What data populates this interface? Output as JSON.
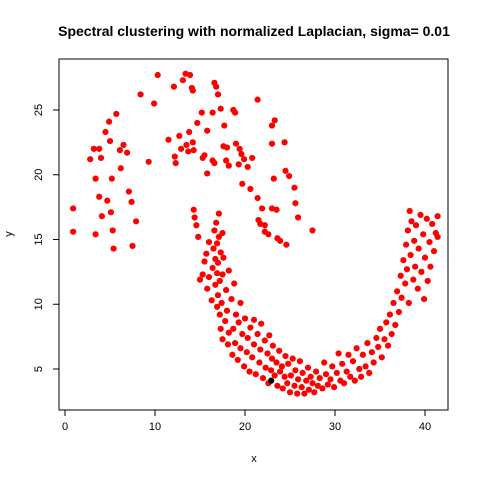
{
  "chart_data": {
    "type": "scatter",
    "title": "Spectral clustering with normalized Laplacian, sigma= 0.01",
    "xlabel": "x",
    "ylabel": "y",
    "xlim": [
      0,
      42
    ],
    "ylim": [
      3,
      28
    ],
    "xticks": [
      0,
      10,
      20,
      30,
      40
    ],
    "yticks": [
      5,
      10,
      15,
      20,
      25
    ],
    "grid": false,
    "legend": "none",
    "series": [
      {
        "color": "#ff0000",
        "points": [
          [
            0.9,
            17.4
          ],
          [
            0.9,
            15.6
          ],
          [
            2.8,
            21.2
          ],
          [
            3.2,
            22
          ],
          [
            3.4,
            19.7
          ],
          [
            3.4,
            15.4
          ],
          [
            3.8,
            22
          ],
          [
            4.0,
            21.3
          ],
          [
            3.8,
            18.3
          ],
          [
            4.1,
            16.8
          ],
          [
            4.5,
            23.3
          ],
          [
            4.7,
            18
          ],
          [
            4.9,
            24.1
          ],
          [
            5.0,
            22.6
          ],
          [
            5.2,
            19.7
          ],
          [
            5.1,
            17.1
          ],
          [
            5.3,
            15.7
          ],
          [
            5.4,
            14.3
          ],
          [
            5.7,
            24.7
          ],
          [
            6.1,
            21.9
          ],
          [
            6.2,
            20.5
          ],
          [
            6.5,
            22.3
          ],
          [
            6.9,
            21.7
          ],
          [
            7.1,
            18.7
          ],
          [
            7.4,
            17.9
          ],
          [
            7.5,
            14.5
          ],
          [
            7.9,
            16.4
          ],
          [
            8.4,
            26.2
          ],
          [
            9.3,
            21
          ],
          [
            9.9,
            25.5
          ],
          [
            10.3,
            27.7
          ],
          [
            11.5,
            22.7
          ],
          [
            12.1,
            26.8
          ],
          [
            12.2,
            21.4
          ],
          [
            12.3,
            20.9
          ],
          [
            12.7,
            23
          ],
          [
            12.9,
            22
          ],
          [
            13.1,
            27.3
          ],
          [
            13.4,
            27.8
          ],
          [
            13.5,
            22.3
          ],
          [
            13.7,
            21.8
          ],
          [
            13.8,
            23.3
          ],
          [
            13.9,
            27.7
          ],
          [
            14.1,
            26.7
          ],
          [
            14.2,
            26.5
          ],
          [
            14.2,
            22.5
          ],
          [
            14.3,
            21.9
          ],
          [
            14.3,
            17.3
          ],
          [
            14.4,
            16.7
          ],
          [
            14.6,
            16.1
          ],
          [
            14.8,
            15.2
          ],
          [
            14.7,
            24
          ],
          [
            15.2,
            24.8
          ],
          [
            15.3,
            21.3
          ],
          [
            15.5,
            21.5
          ],
          [
            15.8,
            23.4
          ],
          [
            15.8,
            20.1
          ],
          [
            16.4,
            24.8
          ],
          [
            16.4,
            21.1
          ],
          [
            16.6,
            27.1
          ],
          [
            16.8,
            26.8
          ],
          [
            16.6,
            20.9
          ],
          [
            17.0,
            26.2
          ],
          [
            17.3,
            25.1
          ],
          [
            17.6,
            22.2
          ],
          [
            17.7,
            23.8
          ],
          [
            17.9,
            21.1
          ],
          [
            18.0,
            22.1
          ],
          [
            18.2,
            20.7
          ],
          [
            18.7,
            25
          ],
          [
            18.9,
            24.8
          ],
          [
            19.0,
            22.4
          ],
          [
            19.3,
            20.8
          ],
          [
            19.4,
            22
          ],
          [
            19.6,
            21.6
          ],
          [
            19.7,
            19.3
          ],
          [
            19.9,
            21.2
          ],
          [
            20.3,
            20.6
          ],
          [
            20.6,
            18.9
          ],
          [
            20.8,
            21.3
          ],
          [
            21.4,
            25.8
          ],
          [
            21.4,
            18.2
          ],
          [
            21.5,
            16.5
          ],
          [
            21.7,
            16.2
          ],
          [
            21.9,
            17.4
          ],
          [
            22.2,
            16.1
          ],
          [
            22.2,
            15.6
          ],
          [
            22.6,
            15.4
          ],
          [
            23.0,
            23.8
          ],
          [
            23.0,
            22.4
          ],
          [
            23.0,
            17.4
          ],
          [
            23.2,
            19.7
          ],
          [
            23.3,
            24.2
          ],
          [
            23.5,
            17.3
          ],
          [
            23.6,
            15.1
          ],
          [
            23.9,
            14.9
          ],
          [
            24.4,
            22.5
          ],
          [
            24.5,
            20.3
          ],
          [
            24.6,
            14.6
          ],
          [
            24.9,
            19.9
          ],
          [
            25.5,
            19
          ],
          [
            25.6,
            17.8
          ],
          [
            25.9,
            16.7
          ],
          [
            27.5,
            15.7
          ],
          [
            15.0,
            11.9
          ],
          [
            15.3,
            12.3
          ],
          [
            15.5,
            13.3
          ],
          [
            15.7,
            13.9
          ],
          [
            15.8,
            11.2
          ],
          [
            16.0,
            14.8
          ],
          [
            16.0,
            12.1
          ],
          [
            16.3,
            10.3
          ],
          [
            16.4,
            12.8
          ],
          [
            16.5,
            14.3
          ],
          [
            16.6,
            15.7
          ],
          [
            16.7,
            11.5
          ],
          [
            16.7,
            13.5
          ],
          [
            16.8,
            16.3
          ],
          [
            16.9,
            9.8
          ],
          [
            16.9,
            12.4
          ],
          [
            16.9,
            14.7
          ],
          [
            17.0,
            10.7
          ],
          [
            17.0,
            13.2
          ],
          [
            17.1,
            15.2
          ],
          [
            17.1,
            17
          ],
          [
            17.2,
            11.8
          ],
          [
            17.2,
            9.2
          ],
          [
            17.3,
            14
          ],
          [
            17.3,
            8.1
          ],
          [
            17.4,
            10.1
          ],
          [
            17.5,
            12.3
          ],
          [
            17.5,
            15.5
          ],
          [
            17.5,
            7.3
          ],
          [
            17.6,
            13.6
          ],
          [
            17.8,
            8.7
          ],
          [
            17.9,
            11.1
          ],
          [
            18.0,
            9.5
          ],
          [
            18.1,
            6.9
          ],
          [
            18.2,
            12.6
          ],
          [
            18.2,
            7.8
          ],
          [
            18.5,
            10.4
          ],
          [
            18.6,
            6.1
          ],
          [
            18.7,
            8.1
          ],
          [
            18.8,
            11.6
          ],
          [
            18.9,
            7
          ],
          [
            19.0,
            9.2
          ],
          [
            19.2,
            5.7
          ],
          [
            19.3,
            8.6
          ],
          [
            19.5,
            6.6
          ],
          [
            19.5,
            10.1
          ],
          [
            19.7,
            7.7
          ],
          [
            19.9,
            5.2
          ],
          [
            20.0,
            8.9
          ],
          [
            20.2,
            6.3
          ],
          [
            20.3,
            7.4
          ],
          [
            20.5,
            4.8
          ],
          [
            20.6,
            8.2
          ],
          [
            20.8,
            5.9
          ],
          [
            21.0,
            6.9
          ],
          [
            21.0,
            8.8
          ],
          [
            21.2,
            4.6
          ],
          [
            21.4,
            7.7
          ],
          [
            21.6,
            5.5
          ],
          [
            21.7,
            6.5
          ],
          [
            21.8,
            8.5
          ],
          [
            22.0,
            4.3
          ],
          [
            22.2,
            7.2
          ],
          [
            22.3,
            5.1
          ],
          [
            22.5,
            6.2
          ],
          [
            22.6,
            3.9
          ],
          [
            22.7,
            7.6
          ],
          [
            22.9,
            4.9
          ],
          [
            23.0,
            5.8
          ],
          [
            23.1,
            6.8
          ],
          [
            23.3,
            4.5
          ],
          [
            23.5,
            5.5
          ],
          [
            23.6,
            3.7
          ],
          [
            23.8,
            6.4
          ],
          [
            23.9,
            4.8
          ],
          [
            24.1,
            5.2
          ],
          [
            24.2,
            3.5
          ],
          [
            24.4,
            4.4
          ],
          [
            24.5,
            6
          ],
          [
            24.7,
            3.9
          ],
          [
            24.8,
            5.4
          ],
          [
            25.0,
            3.2
          ],
          [
            25.1,
            4.5
          ],
          [
            25.3,
            5.8
          ],
          [
            25.5,
            3.7
          ],
          [
            25.6,
            4.9
          ],
          [
            25.8,
            3.1
          ],
          [
            25.9,
            4.2
          ],
          [
            26.1,
            5.6
          ],
          [
            26.3,
            3.6
          ],
          [
            26.4,
            4.7
          ],
          [
            26.6,
            3.1
          ],
          [
            26.8,
            4.1
          ],
          [
            27.0,
            5.1
          ],
          [
            27.1,
            3.4
          ],
          [
            27.3,
            4.4
          ],
          [
            27.5,
            3.9
          ],
          [
            27.7,
            3.2
          ],
          [
            27.9,
            4.8
          ],
          [
            28.1,
            3.7
          ],
          [
            28.3,
            4.3
          ],
          [
            28.6,
            3.5
          ],
          [
            28.8,
            5.5
          ],
          [
            29.0,
            4.6
          ],
          [
            29.2,
            3.8
          ],
          [
            29.5,
            4.2
          ],
          [
            29.7,
            5.2
          ],
          [
            29.9,
            3.6
          ],
          [
            30.2,
            4.7
          ],
          [
            30.4,
            6.2
          ],
          [
            30.6,
            4.1
          ],
          [
            30.8,
            5.4
          ],
          [
            31.0,
            3.9
          ],
          [
            31.3,
            4.8
          ],
          [
            31.5,
            6.1
          ],
          [
            31.7,
            4.4
          ],
          [
            32.0,
            5.6
          ],
          [
            32.2,
            4.1
          ],
          [
            32.4,
            6.6
          ],
          [
            32.7,
            5
          ],
          [
            32.9,
            4.4
          ],
          [
            33.1,
            6.1
          ],
          [
            33.4,
            5.2
          ],
          [
            33.6,
            7
          ],
          [
            33.8,
            4.7
          ],
          [
            34.1,
            6.3
          ],
          [
            34.3,
            5.5
          ],
          [
            34.6,
            7.4
          ],
          [
            34.8,
            6.7
          ],
          [
            35.0,
            8.1
          ],
          [
            35.2,
            5.9
          ],
          [
            35.5,
            7.3
          ],
          [
            35.7,
            8.6
          ],
          [
            35.9,
            6.8
          ],
          [
            36.1,
            9.2
          ],
          [
            36.3,
            7.7
          ],
          [
            36.5,
            10.1
          ],
          [
            36.7,
            8.4
          ],
          [
            36.9,
            11
          ],
          [
            37.1,
            9.4
          ],
          [
            37.3,
            12.2
          ],
          [
            37.4,
            10.5
          ],
          [
            37.6,
            13.4
          ],
          [
            37.8,
            11.6
          ],
          [
            37.9,
            14.6
          ],
          [
            38.0,
            12.7
          ],
          [
            38.1,
            15.7
          ],
          [
            38.2,
            10.1
          ],
          [
            38.3,
            17.2
          ],
          [
            38.4,
            13.8
          ],
          [
            38.5,
            16.4
          ],
          [
            38.7,
            11.9
          ],
          [
            38.8,
            14.9
          ],
          [
            38.9,
            12.9
          ],
          [
            39.0,
            16.1
          ],
          [
            39.2,
            11.2
          ],
          [
            39.3,
            14.3
          ],
          [
            39.5,
            16.9
          ],
          [
            39.6,
            12.5
          ],
          [
            39.8,
            15.4
          ],
          [
            39.9,
            10.4
          ],
          [
            40.0,
            13.6
          ],
          [
            40.2,
            16.6
          ],
          [
            40.3,
            11.8
          ],
          [
            40.5,
            14.8
          ],
          [
            40.6,
            12.9
          ],
          [
            40.8,
            16.2
          ],
          [
            41.0,
            14.1
          ],
          [
            41.2,
            15.5
          ],
          [
            41.4,
            16.8
          ],
          [
            41.4,
            15.2
          ]
        ]
      },
      {
        "color": "#000000",
        "points": [
          [
            22.9,
            4.1
          ]
        ]
      }
    ]
  }
}
